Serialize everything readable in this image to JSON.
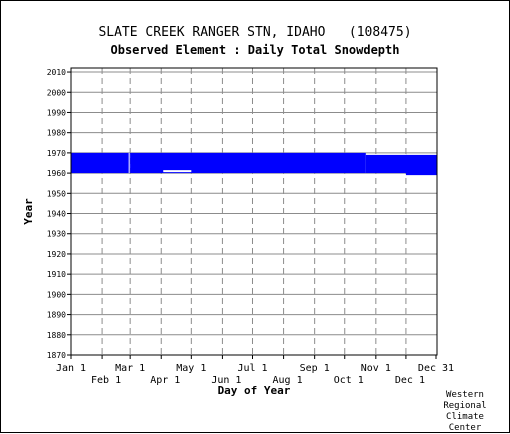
{
  "title": "SLATE CREEK RANGER STN, IDAHO   (108475)",
  "subtitle": "Observed Element : Daily Total Snowdepth",
  "credit": [
    "Western",
    "Regional",
    "Climate",
    "Center"
  ],
  "chart_data": {
    "type": "bar",
    "xlabel": "Day of Year",
    "ylabel": "Year",
    "xlim": [
      1,
      365
    ],
    "ylim": [
      1870,
      2012
    ],
    "x_ticks_upper": [
      {
        "label": "Jan 1",
        "day": 1
      },
      {
        "label": "Mar 1",
        "day": 60
      },
      {
        "label": "May 1",
        "day": 121
      },
      {
        "label": "Jul 1",
        "day": 182
      },
      {
        "label": "Sep 1",
        "day": 244
      },
      {
        "label": "Nov 1",
        "day": 305
      },
      {
        "label": "Dec 31",
        "day": 365
      }
    ],
    "x_ticks_lower": [
      {
        "label": "Feb 1",
        "day": 32
      },
      {
        "label": "Apr 1",
        "day": 91
      },
      {
        "label": "Jun 1",
        "day": 152
      },
      {
        "label": "Aug 1",
        "day": 213
      },
      {
        "label": "Oct 1",
        "day": 274
      },
      {
        "label": "Dec 1",
        "day": 335
      }
    ],
    "y_ticks": [
      1870,
      1880,
      1890,
      1900,
      1910,
      1920,
      1930,
      1940,
      1950,
      1960,
      1970,
      1980,
      1990,
      2000,
      2010
    ],
    "grid": true,
    "series": [
      {
        "color": "#0000ff",
        "segments": [
          {
            "day_start": 1,
            "day_end": 59,
            "year_start": 1960,
            "year_end": 1970
          },
          {
            "day_start": 60,
            "day_end": 294,
            "year_start": 1960,
            "year_end": 1970
          },
          {
            "day_start": 295,
            "day_end": 335,
            "year_start": 1960,
            "year_end": 1969
          },
          {
            "day_start": 335,
            "day_end": 365,
            "year_start": 1959,
            "year_end": 1969
          }
        ]
      }
    ],
    "gaps": [
      {
        "day_start": 93,
        "day_end": 121,
        "year": 1961
      }
    ]
  }
}
